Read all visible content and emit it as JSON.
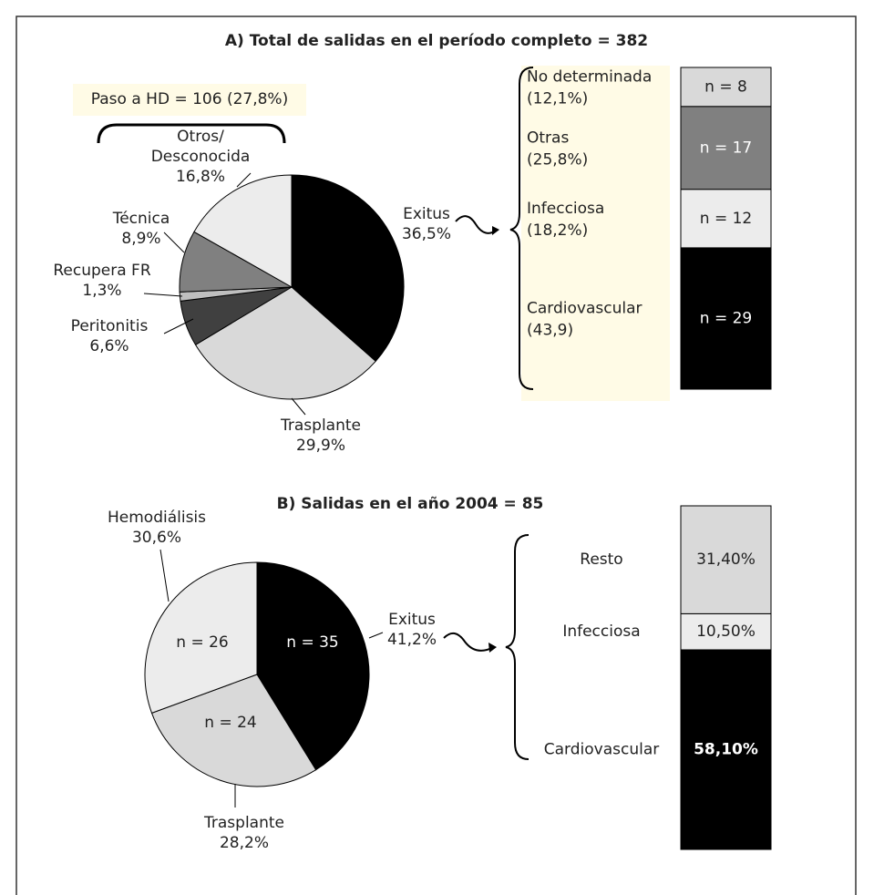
{
  "chart_data": [
    {
      "type": "pie",
      "title": "A) Total de salidas en el período completo = 382",
      "annotation": "Paso a HD = 106 (27,8%)",
      "categories": [
        "Exitus",
        "Trasplante",
        "Peritonitis",
        "Recupera FR",
        "Técnica",
        "Otros/\nDesconocida"
      ],
      "values": [
        36.5,
        29.9,
        6.6,
        1.3,
        8.9,
        16.8
      ],
      "value_labels": [
        "36,5%",
        "29,9%",
        "6,6%",
        "1,3%",
        "8,9%",
        "16,8%"
      ],
      "colors": [
        "#000000",
        "#d9d9d9",
        "#404040",
        "#bfbfbf",
        "#808080",
        "#ececec"
      ]
    },
    {
      "type": "bar",
      "stacked": true,
      "categories": [
        "Cardiovascular",
        "Infecciosa",
        "Otras",
        "No determinada"
      ],
      "category_notes": [
        "(43,9)",
        "(18,2%)",
        "(25,8%)",
        "(12,1%)"
      ],
      "values": [
        29,
        12,
        17,
        8
      ],
      "value_labels": [
        "n = 29",
        "n = 12",
        "n = 17",
        "n = 8"
      ],
      "colors": [
        "#000000",
        "#ececec",
        "#808080",
        "#d9d9d9"
      ]
    },
    {
      "type": "pie",
      "title": "B) Salidas en el año 2004 = 85",
      "categories": [
        "Exitus",
        "Trasplante",
        "Hemodiálisis"
      ],
      "values": [
        41.2,
        28.2,
        30.6
      ],
      "value_labels": [
        "41,2%",
        "28,2%",
        "30,6%"
      ],
      "inner_labels": [
        "n = 35",
        "n = 24",
        "n = 26"
      ],
      "colors": [
        "#000000",
        "#d9d9d9",
        "#ececec"
      ]
    },
    {
      "type": "bar",
      "stacked": true,
      "categories": [
        "Cardiovascular",
        "Infecciosa",
        "Resto"
      ],
      "values": [
        58.1,
        10.5,
        31.4
      ],
      "value_labels": [
        "58,10%",
        "10,50%",
        "31,40%"
      ],
      "colors": [
        "#000000",
        "#ececec",
        "#d9d9d9"
      ]
    }
  ]
}
